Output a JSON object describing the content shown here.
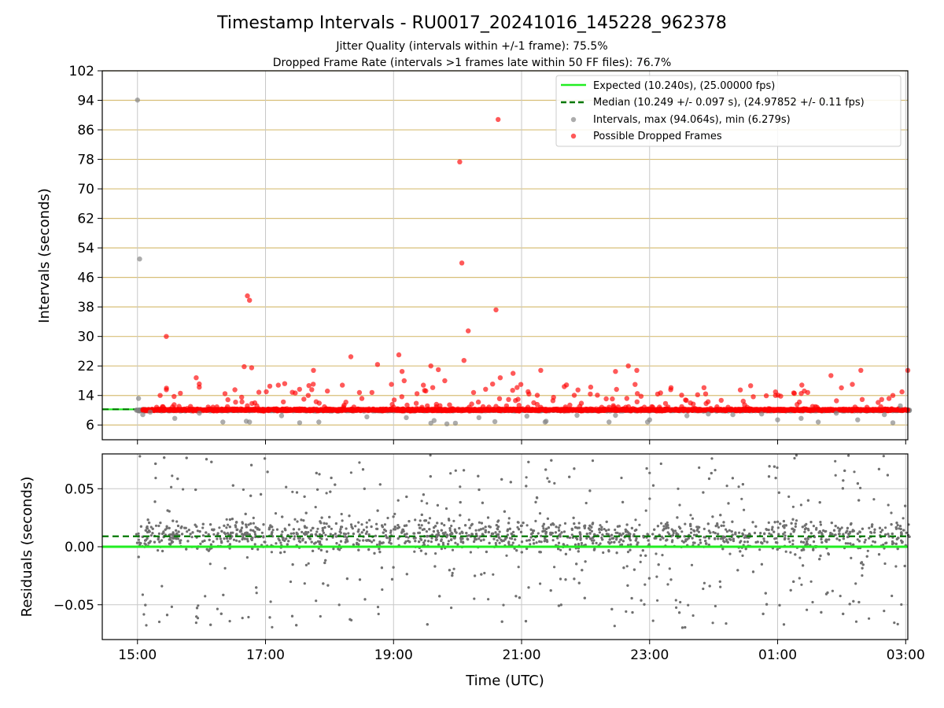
{
  "chart_data": [
    {
      "type": "scatter",
      "title": "Timestamp Intervals - RU0017_20241016_145228_962378",
      "subtitles": [
        "Jitter Quality (intervals within +/-1 frame): 75.5%",
        "Dropped Frame Rate (intervals >1 frames late within 50 FF files): 76.7%"
      ],
      "xlabel": "",
      "ylabel": "Intervals (seconds)",
      "xlim": [
        "14:27",
        "03:02"
      ],
      "ylim": [
        2,
        102
      ],
      "yticks": [
        6,
        14,
        22,
        30,
        38,
        46,
        54,
        62,
        70,
        78,
        86,
        94,
        102
      ],
      "xticks": [
        "15:00",
        "17:00",
        "19:00",
        "21:00",
        "23:00",
        "01:00",
        "03:00"
      ],
      "grid": "on",
      "legend_position": "top-right",
      "legend": [
        "Expected (10.240s), (25.00000 fps)",
        "Median (10.249 +/- 0.097 s), (24.97852 +/- 0.11 fps)",
        "Intervals, max (94.064s), min (6.279s)",
        "Possible Dropped Frames"
      ],
      "series": [
        {
          "name": "Expected (10.240s), (25.00000 fps)",
          "kind": "line",
          "y": 10.24,
          "color": "#22ee22"
        },
        {
          "name": "Median (10.249 +/- 0.097 s), (24.97852 +/- 0.11 fps)",
          "kind": "line",
          "y": 10.249,
          "color": "#007700"
        },
        {
          "name": "Intervals, max (94.064s), min (6.279s)",
          "kind": "scatter",
          "color": "#808080",
          "points": [
            [
              "15:00",
              94.064
            ],
            [
              "15:02",
              51.0
            ],
            [
              "15:01",
              13.2
            ],
            [
              "15:05",
              8.8
            ],
            [
              "15:12",
              9.5
            ],
            [
              "15:35",
              7.8
            ],
            [
              "15:58",
              9.2
            ],
            [
              "16:20",
              6.8
            ],
            [
              "16:42",
              7.0
            ],
            [
              "16:45",
              6.8
            ],
            [
              "17:15",
              8.5
            ],
            [
              "17:32",
              6.6
            ],
            [
              "17:50",
              6.8
            ],
            [
              "18:35",
              8.2
            ],
            [
              "19:12",
              8.0
            ],
            [
              "19:35",
              6.5
            ],
            [
              "19:38",
              7.2
            ],
            [
              "19:50",
              6.3
            ],
            [
              "19:58",
              6.5
            ],
            [
              "20:20",
              8.0
            ],
            [
              "20:35",
              6.9
            ],
            [
              "21:05",
              8.4
            ],
            [
              "21:22",
              6.8
            ],
            [
              "21:23",
              7.0
            ],
            [
              "21:52",
              8.6
            ],
            [
              "22:22",
              6.8
            ],
            [
              "22:28",
              8.6
            ],
            [
              "22:58",
              6.8
            ],
            [
              "23:00",
              7.4
            ],
            [
              "23:35",
              8.5
            ],
            [
              "23:55",
              9.0
            ],
            [
              "00:18",
              8.8
            ],
            [
              "00:45",
              9.0
            ],
            [
              "01:00",
              7.4
            ],
            [
              "01:22",
              7.8
            ],
            [
              "01:38",
              6.8
            ],
            [
              "01:55",
              9.2
            ],
            [
              "02:15",
              7.4
            ],
            [
              "02:40",
              8.8
            ],
            [
              "02:48",
              6.6
            ],
            [
              "02:55",
              11.2
            ]
          ]
        },
        {
          "name": "Possible Dropped Frames",
          "kind": "scatter",
          "color": "#ff0000",
          "points": [
            [
              "15:27",
              30.0
            ],
            [
              "15:55",
              18.8
            ],
            [
              "16:22",
              14.5
            ],
            [
              "16:32",
              12.2
            ],
            [
              "16:40",
              21.8
            ],
            [
              "16:43",
              41.0
            ],
            [
              "16:45",
              39.8
            ],
            [
              "16:47",
              21.5
            ],
            [
              "16:50",
              12.0
            ],
            [
              "17:12",
              16.8
            ],
            [
              "17:18",
              17.2
            ],
            [
              "17:36",
              13.0
            ],
            [
              "17:40",
              14.0
            ],
            [
              "17:45",
              20.8
            ],
            [
              "17:58",
              15.2
            ],
            [
              "18:12",
              16.8
            ],
            [
              "18:20",
              24.5
            ],
            [
              "18:28",
              14.8
            ],
            [
              "18:45",
              22.4
            ],
            [
              "18:58",
              17.0
            ],
            [
              "19:05",
              25.0
            ],
            [
              "19:08",
              20.5
            ],
            [
              "19:10",
              18.0
            ],
            [
              "19:22",
              14.5
            ],
            [
              "19:28",
              16.8
            ],
            [
              "19:35",
              22.0
            ],
            [
              "19:42",
              21.0
            ],
            [
              "19:48",
              18.0
            ],
            [
              "20:02",
              77.3
            ],
            [
              "20:04",
              49.9
            ],
            [
              "20:06",
              23.5
            ],
            [
              "20:10",
              31.5
            ],
            [
              "20:15",
              14.8
            ],
            [
              "20:38",
              88.8
            ],
            [
              "20:36",
              37.2
            ],
            [
              "20:40",
              18.8
            ],
            [
              "20:52",
              20.0
            ],
            [
              "21:18",
              20.8
            ],
            [
              "21:30",
              13.5
            ],
            [
              "21:40",
              16.4
            ],
            [
              "22:28",
              20.5
            ],
            [
              "22:40",
              22.0
            ],
            [
              "22:48",
              20.8
            ],
            [
              "22:52",
              13.8
            ],
            [
              "23:45",
              14.2
            ],
            [
              "00:25",
              15.5
            ],
            [
              "00:58",
              14.0
            ],
            [
              "01:25",
              15.2
            ],
            [
              "01:50",
              19.4
            ],
            [
              "02:10",
              17.0
            ],
            [
              "02:18",
              20.8
            ],
            [
              "02:48",
              14.0
            ],
            [
              "03:02",
              20.8
            ]
          ]
        }
      ]
    },
    {
      "type": "scatter",
      "xlabel": "Time (UTC)",
      "ylabel": "Residuals (seconds)",
      "xlim": [
        "14:27",
        "03:02"
      ],
      "ylim": [
        -0.08,
        0.08
      ],
      "yticks": [
        {
          "value": 0.05,
          "label": "0.05"
        },
        {
          "value": 0.0,
          "label": "0.00"
        },
        {
          "value": -0.05,
          "label": "−0.05"
        }
      ],
      "xticks": [
        "15:00",
        "17:00",
        "19:00",
        "21:00",
        "23:00",
        "01:00",
        "03:00"
      ],
      "grid": "on",
      "series": [
        {
          "kind": "line",
          "y": 0.0,
          "color": "#22ee22"
        },
        {
          "kind": "line",
          "y": 0.009,
          "color": "#007700"
        },
        {
          "kind": "scatter",
          "color": "#808080",
          "description_range": [
            -0.08,
            0.08
          ]
        }
      ]
    }
  ]
}
